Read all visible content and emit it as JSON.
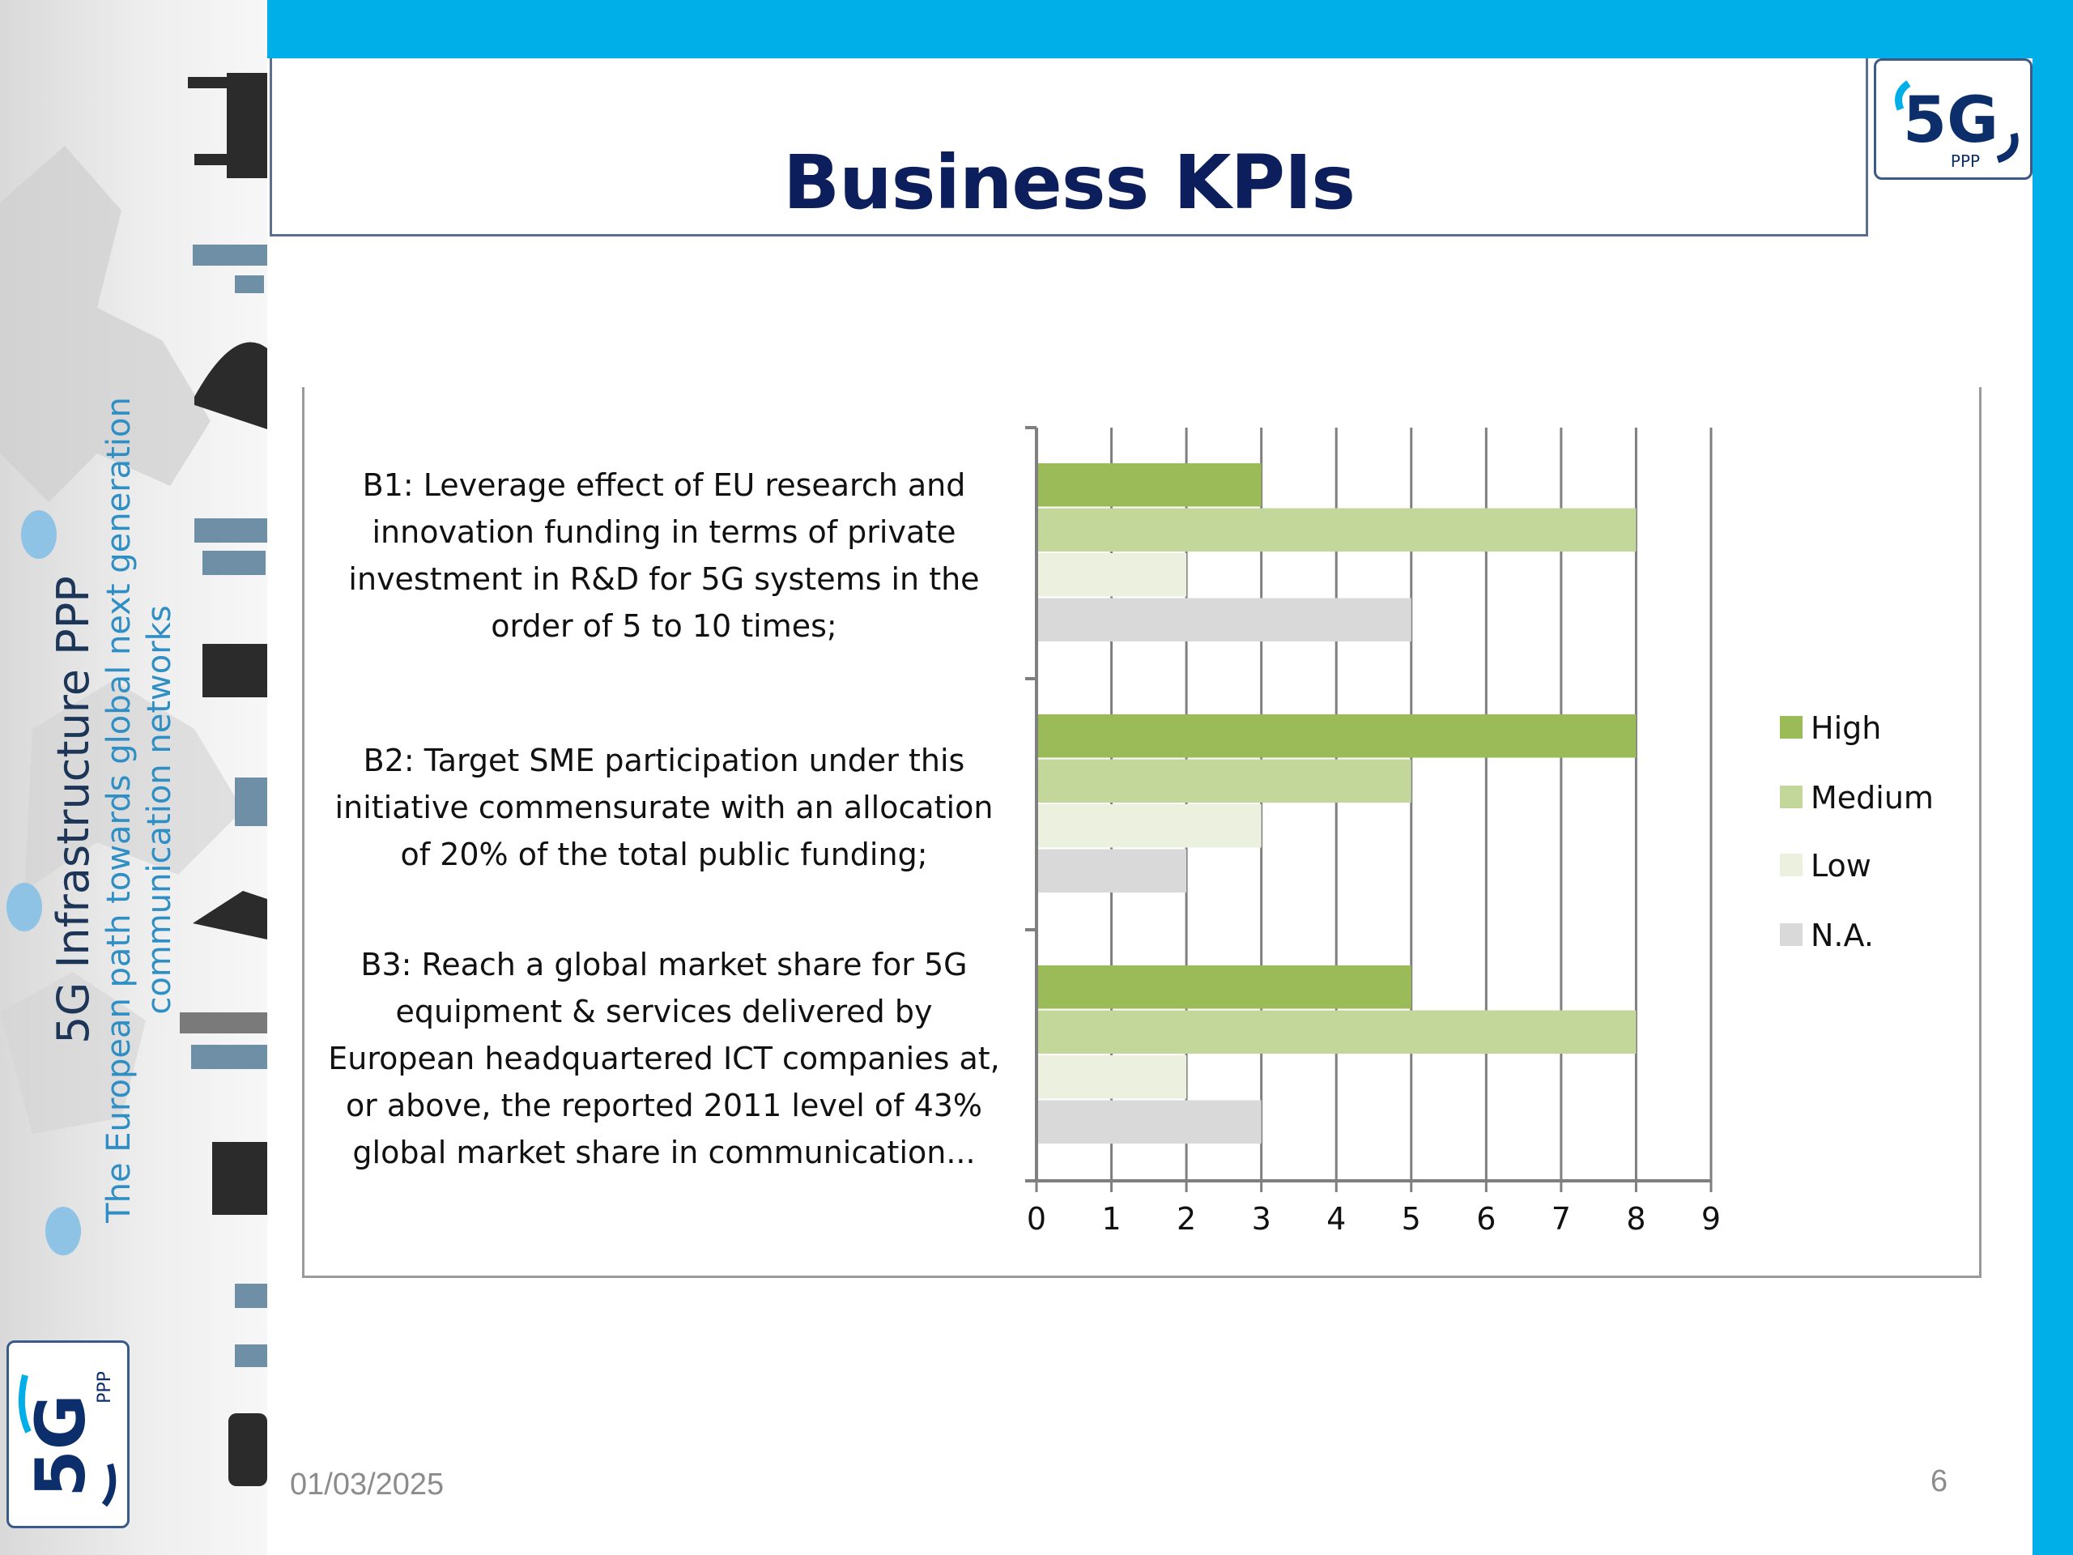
{
  "slide": {
    "title": "Business KPIs",
    "date": "01/03/2025",
    "page_number": "6"
  },
  "sidebar": {
    "title": "5G Infrastructure PPP",
    "subtitle": "The European path towards global next generation communication networks"
  },
  "logo": {
    "mark": "5G",
    "small": "PPP"
  },
  "colors": {
    "banner": "#00aee8",
    "title": "#0c1f5c",
    "high": "#9bbb59",
    "medium": "#c4d79b",
    "low": "#ebf1de",
    "na": "#d9d9d9"
  },
  "chart_data": {
    "type": "bar",
    "orientation": "horizontal",
    "categories": [
      "B1: Leverage effect of EU research and innovation funding in terms of private investment in R&D for 5G systems in the order of 5 to 10 times;",
      "B2: Target SME participation under this initiative commensurate with an allocation of 20% of the total public funding;",
      "B3: Reach a global market share for 5G equipment & services delivered by European headquartered ICT companies at, or above, the reported 2011 level of 43% global market share in communication..."
    ],
    "category_lines": [
      [
        "B1: Leverage effect of EU research and",
        "innovation funding in terms of private",
        "investment in R&D for 5G systems in the",
        "order of 5 to 10 times;"
      ],
      [
        "B2: Target SME participation under this",
        "initiative commensurate with an allocation",
        "of 20% of the total public funding;"
      ],
      [
        "B3: Reach a global market share for 5G",
        "equipment & services delivered by",
        "European headquartered ICT companies at,",
        "or above, the reported 2011 level of 43%",
        "global market share in communication..."
      ]
    ],
    "series": [
      {
        "name": "High",
        "values": [
          3,
          8,
          5
        ],
        "color": "#9bbb59"
      },
      {
        "name": "Medium",
        "values": [
          8,
          5,
          8
        ],
        "color": "#c4d79b"
      },
      {
        "name": "Low",
        "values": [
          2,
          3,
          2
        ],
        "color": "#ebf1de"
      },
      {
        "name": "N.A.",
        "values": [
          5,
          2,
          3
        ],
        "color": "#d9d9d9"
      }
    ],
    "xlim": [
      0,
      9
    ],
    "xticks": [
      "0",
      "1",
      "2",
      "3",
      "4",
      "5",
      "6",
      "7",
      "8",
      "9"
    ],
    "grid": true,
    "legend": "right",
    "title": "",
    "xlabel": "",
    "ylabel": ""
  }
}
